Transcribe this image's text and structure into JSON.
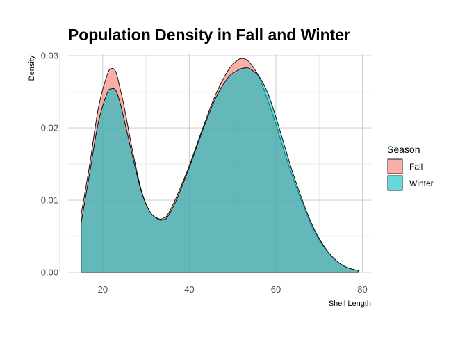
{
  "chart_data": {
    "type": "area",
    "title": "Population Density in Fall and Winter",
    "xlabel": "Shell Length",
    "ylabel": "Density",
    "xlim": [
      12,
      82
    ],
    "ylim": [
      0,
      0.0302
    ],
    "x_ticks": [
      20,
      40,
      60,
      80
    ],
    "x_tick_labels": [
      "20",
      "40",
      "60",
      "80"
    ],
    "y_ticks": [
      0,
      0.01,
      0.02,
      0.03
    ],
    "y_tick_labels": [
      "0.00",
      "0.01",
      "0.02",
      "0.03"
    ],
    "grid": true,
    "legend": {
      "title": "Season",
      "position": "right"
    },
    "series": [
      {
        "name": "Fall",
        "color": "#F8766D",
        "x": [
          15,
          17,
          19,
          21,
          22,
          23,
          24,
          25,
          27,
          29,
          31,
          33,
          34,
          35,
          37,
          40,
          43,
          46,
          49,
          51,
          52,
          53,
          54,
          56,
          58,
          60,
          62,
          64,
          66,
          68,
          70,
          72,
          74,
          76,
          78,
          79
        ],
        "y": [
          0.008,
          0.015,
          0.0228,
          0.0273,
          0.0282,
          0.0278,
          0.0255,
          0.0228,
          0.0165,
          0.0112,
          0.0083,
          0.0074,
          0.0075,
          0.008,
          0.0104,
          0.0148,
          0.0198,
          0.0245,
          0.028,
          0.0293,
          0.0296,
          0.0295,
          0.029,
          0.0272,
          0.024,
          0.0205,
          0.0166,
          0.013,
          0.0098,
          0.0068,
          0.0045,
          0.0028,
          0.0016,
          0.0008,
          0.0004,
          0.0003
        ]
      },
      {
        "name": "Winter",
        "color": "#00BFC4",
        "x": [
          15,
          17,
          19,
          21,
          22,
          23,
          24,
          25,
          27,
          29,
          31,
          33,
          34,
          35,
          37,
          40,
          43,
          46,
          49,
          51,
          52,
          53,
          54,
          56,
          58,
          60,
          62,
          64,
          66,
          68,
          70,
          72,
          74,
          76,
          78,
          79
        ],
        "y": [
          0.0068,
          0.0138,
          0.0208,
          0.0248,
          0.0254,
          0.0252,
          0.0235,
          0.021,
          0.0158,
          0.011,
          0.0083,
          0.0073,
          0.0073,
          0.0077,
          0.01,
          0.0145,
          0.0195,
          0.024,
          0.027,
          0.0279,
          0.0282,
          0.0283,
          0.0282,
          0.0272,
          0.025,
          0.0215,
          0.0175,
          0.0136,
          0.0102,
          0.0071,
          0.0047,
          0.0029,
          0.0016,
          0.0008,
          0.0004,
          0.0003
        ]
      }
    ]
  }
}
